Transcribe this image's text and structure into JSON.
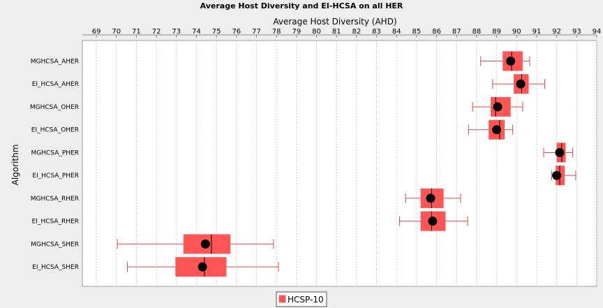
{
  "chart_data": {
    "type": "boxplot",
    "title": "Average Host Diversity and EI-HCSA on all HER",
    "xlabel": "Average Host Diversity (AHD)",
    "ylabel": "Algorithm",
    "xlim": [
      68.3,
      94.0
    ],
    "x_ticks": [
      69,
      70,
      71,
      72,
      73,
      74,
      75,
      76,
      77,
      78,
      79,
      80,
      81,
      82,
      83,
      84,
      85,
      86,
      87,
      88,
      89,
      90,
      91,
      92,
      93,
      94
    ],
    "grid": "vertical dashed",
    "legend_position": "bottom-center",
    "series": [
      {
        "name": "HCSP-10",
        "color": "#ff5555",
        "categories": [
          "MGHCSA_AHER",
          "EI_HCSA_AHER",
          "MGHCSA_OHER",
          "EI_HCSA_OHER",
          "MGHCSA_PHER",
          "EI_HCSA_PHER",
          "MGHCSA_RHER",
          "EI_HCSA_RHER",
          "MGHCSA_SHER",
          "EI_HCSA_SHER"
        ],
        "boxes": [
          {
            "min": 88.2,
            "q1": 89.3,
            "median": 89.75,
            "q3": 90.3,
            "max": 90.65,
            "mean": 89.7
          },
          {
            "min": 88.8,
            "q1": 89.85,
            "median": 90.25,
            "q3": 90.6,
            "max": 91.4,
            "mean": 90.2
          },
          {
            "min": 87.8,
            "q1": 88.7,
            "median": 88.95,
            "q3": 89.7,
            "max": 90.3,
            "mean": 89.05
          },
          {
            "min": 87.6,
            "q1": 88.6,
            "median": 89.15,
            "q3": 89.4,
            "max": 89.8,
            "mean": 89.0
          },
          {
            "min": 91.35,
            "q1": 92.0,
            "median": 92.25,
            "q3": 92.45,
            "max": 92.8,
            "mean": 92.15
          },
          {
            "min": 91.75,
            "q1": 91.95,
            "median": 92.15,
            "q3": 92.4,
            "max": 92.95,
            "mean": 92.0
          },
          {
            "min": 84.45,
            "q1": 85.2,
            "median": 85.75,
            "q3": 86.35,
            "max": 87.2,
            "mean": 85.7
          },
          {
            "min": 84.15,
            "q1": 85.2,
            "median": 85.75,
            "q3": 86.45,
            "max": 87.55,
            "mean": 85.8
          },
          {
            "min": 70.05,
            "q1": 73.35,
            "median": 74.75,
            "q3": 75.7,
            "max": 77.85,
            "mean": 74.45
          },
          {
            "min": 70.55,
            "q1": 72.95,
            "median": 74.4,
            "q3": 75.5,
            "max": 78.1,
            "mean": 74.3
          }
        ]
      }
    ]
  }
}
